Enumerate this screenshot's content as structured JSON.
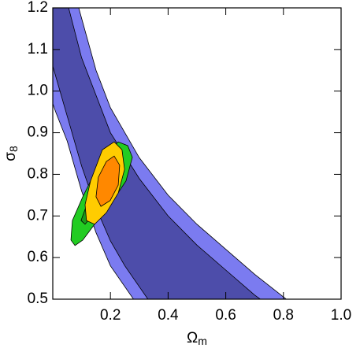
{
  "chart_data": {
    "type": "contour",
    "x_label": {
      "symbol": "Ω",
      "subscript": "m"
    },
    "y_label": {
      "symbol": "σ",
      "subscript": "8"
    },
    "xlim": [
      0,
      1
    ],
    "ylim": [
      0.5,
      1.2
    ],
    "xticks": [
      0.2,
      0.4,
      0.6,
      0.8,
      {
        "value": 1,
        "label": "1.0"
      }
    ],
    "yticks": [
      0.5,
      0.6,
      0.7,
      0.8,
      0.9,
      {
        "value": 1,
        "label": "1.0"
      },
      1.1,
      1.2
    ],
    "series": [
      {
        "color": "#7b7bf0",
        "x": [
          0.09,
          0.15,
          0.2,
          0.3,
          0.4,
          0.5,
          0.6,
          0.7,
          0.81,
          0.28,
          0.2,
          0.15,
          0.1,
          0.05,
          0.01,
          0,
          0
        ],
        "y": [
          1.2,
          1.05,
          0.96,
          0.84,
          0.75,
          0.68,
          0.62,
          0.56,
          0.5,
          0.5,
          0.58,
          0.66,
          0.76,
          0.88,
          0.95,
          0.97,
          1.2
        ]
      },
      {
        "color": "#4d4daa",
        "x": [
          0.055,
          0.1,
          0.2,
          0.3,
          0.4,
          0.5,
          0.6,
          0.7,
          0.72,
          0.33,
          0.25,
          0.2,
          0.15,
          0.1,
          0.05,
          0,
          0
        ],
        "y": [
          1.2,
          1.08,
          0.9,
          0.79,
          0.7,
          0.63,
          0.57,
          0.51,
          0.5,
          0.5,
          0.58,
          0.64,
          0.72,
          0.82,
          0.94,
          1.06,
          1.2
        ]
      },
      {
        "color": "#22cc22",
        "x": [
          0.227,
          0.26,
          0.276,
          0.254,
          0.199,
          0.145,
          0.104,
          0.077,
          0.063,
          0.068,
          0.104,
          0.145,
          0.186
        ],
        "y": [
          0.878,
          0.869,
          0.841,
          0.784,
          0.727,
          0.68,
          0.642,
          0.629,
          0.642,
          0.689,
          0.746,
          0.803,
          0.85
        ]
      },
      {
        "color": "#1a9a1a",
        "x": [
          0.213,
          0.24,
          0.227,
          0.158,
          0.112,
          0.098,
          0.123,
          0.172
        ],
        "y": [
          0.85,
          0.841,
          0.774,
          0.718,
          0.68,
          0.689,
          0.737,
          0.803
        ]
      },
      {
        "color": "#ffcc00",
        "x": [
          0.172,
          0.213,
          0.24,
          0.249,
          0.227,
          0.186,
          0.145,
          0.117,
          0.112,
          0.131
        ],
        "y": [
          0.859,
          0.878,
          0.859,
          0.812,
          0.755,
          0.708,
          0.68,
          0.689,
          0.727,
          0.784
        ]
      },
      {
        "color": "#ff8800",
        "x": [
          0.186,
          0.213,
          0.232,
          0.227,
          0.199,
          0.167,
          0.15,
          0.158
        ],
        "y": [
          0.831,
          0.844,
          0.822,
          0.774,
          0.737,
          0.723,
          0.746,
          0.793
        ]
      }
    ]
  }
}
